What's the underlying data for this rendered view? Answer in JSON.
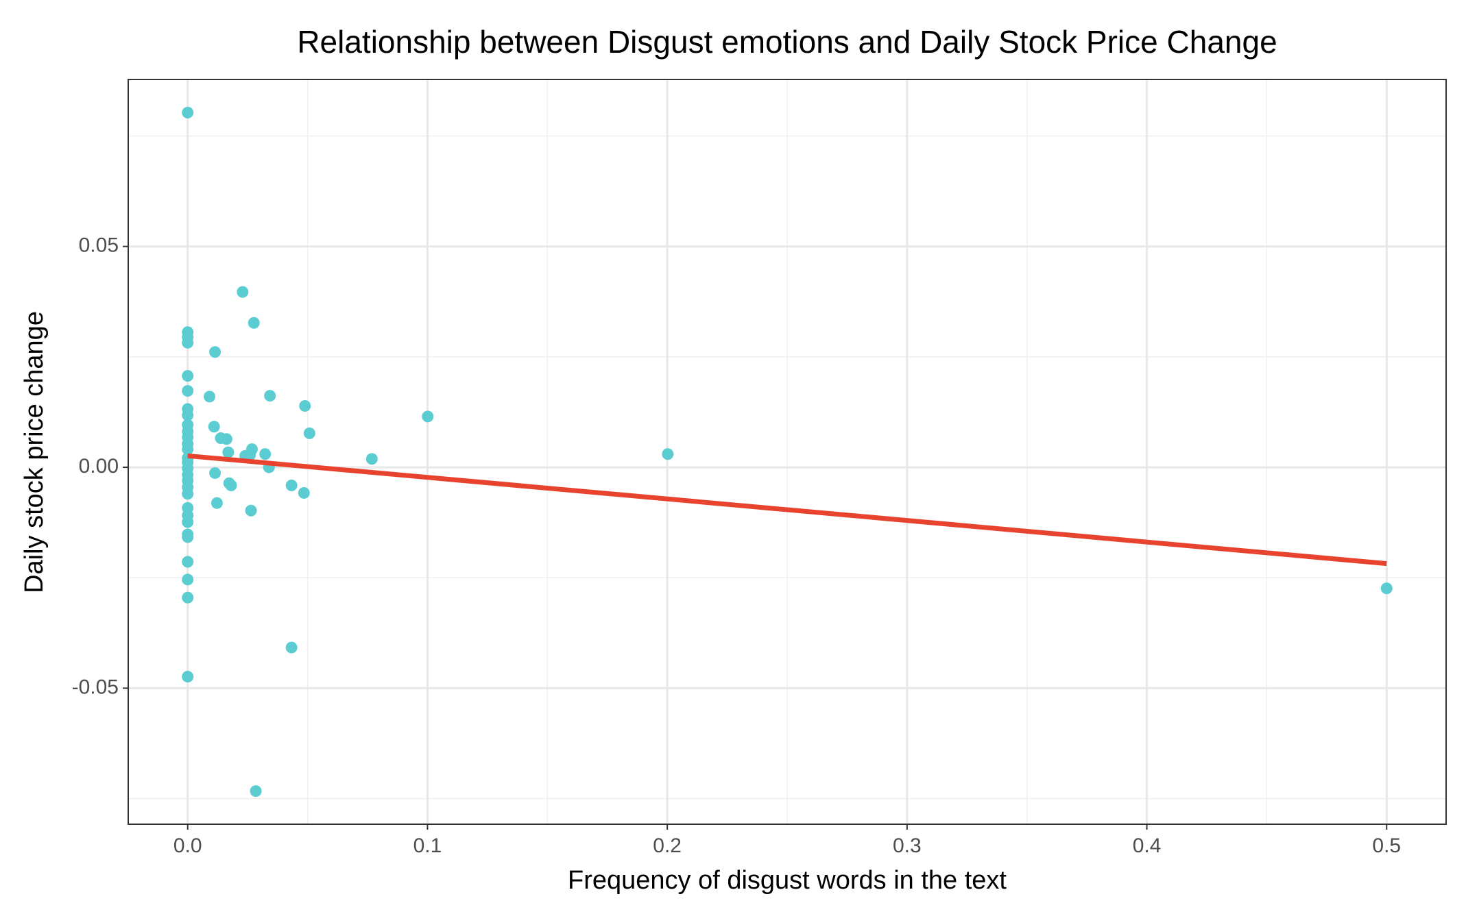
{
  "chart_data": {
    "type": "scatter",
    "title": "Relationship between Disgust emotions and Daily Stock Price Change",
    "x_label": "Frequency of disgust words in the text",
    "y_label": "Daily stock price change",
    "color": "#5bcdd2",
    "x": [
      0,
      0.0229,
      0.0276,
      0,
      0,
      0,
      0.0114,
      0,
      0,
      0.0091,
      0.0343,
      0.0489,
      0.1001,
      0,
      0,
      0.011,
      0.0508,
      0,
      0,
      0,
      0.0138,
      0.0162,
      0,
      0.0268,
      0,
      0.0169,
      0.0323,
      0.2002,
      0.024,
      0.026,
      0.0768,
      0,
      0,
      0.0339,
      0,
      0.0114,
      0,
      0,
      0.0173,
      0.0181,
      0.0433,
      0,
      0.0485,
      0,
      0.0122,
      0,
      0.0264,
      0,
      0,
      0,
      0,
      0,
      0,
      0,
      0.5,
      0.0433,
      0,
      0.0284
    ],
    "y": [
      0.0803,
      0.0397,
      0.0327,
      0.0306,
      0.0295,
      0.0282,
      0.0261,
      0.0207,
      0.0173,
      0.016,
      0.0162,
      0.0139,
      0.0115,
      0.0132,
      0.0118,
      0.0092,
      0.0077,
      0.0096,
      0.0081,
      0.0068,
      0.0066,
      0.0064,
      0.0053,
      0.0041,
      0.0041,
      0.0034,
      0.003,
      0.003,
      0.0026,
      0.0028,
      0.0019,
      0.0021,
      0.0011,
      0,
      -0.0002,
      -0.0013,
      -0.0017,
      -0.003,
      -0.0036,
      -0.0041,
      -0.0041,
      -0.0045,
      -0.0058,
      -0.006,
      -0.0081,
      -0.0092,
      -0.0098,
      -0.0109,
      -0.0124,
      -0.0152,
      -0.0158,
      -0.0214,
      -0.0254,
      -0.0295,
      -0.0274,
      -0.0408,
      -0.0474,
      -0.0733
    ],
    "trend_line": {
      "color": "#e8432e",
      "x": [
        0,
        0.5
      ],
      "y": [
        0.0026,
        -0.0218
      ]
    },
    "xlim": [
      -0.0248,
      0.5248
    ],
    "ylim": [
      -0.0808,
      0.0878
    ],
    "xticks": [
      {
        "value": 0,
        "label": "0.0"
      },
      0.1,
      0.2,
      0.3,
      0.4,
      0.5
    ],
    "yticks": [
      -0.05,
      {
        "value": 0,
        "label": "0.00"
      },
      0.05
    ],
    "x_minor_grid": [
      0.05,
      0.15,
      0.25,
      0.35,
      0.45
    ],
    "y_minor_grid": [
      -0.075,
      -0.025,
      0.025,
      0.075
    ],
    "grid": true
  }
}
